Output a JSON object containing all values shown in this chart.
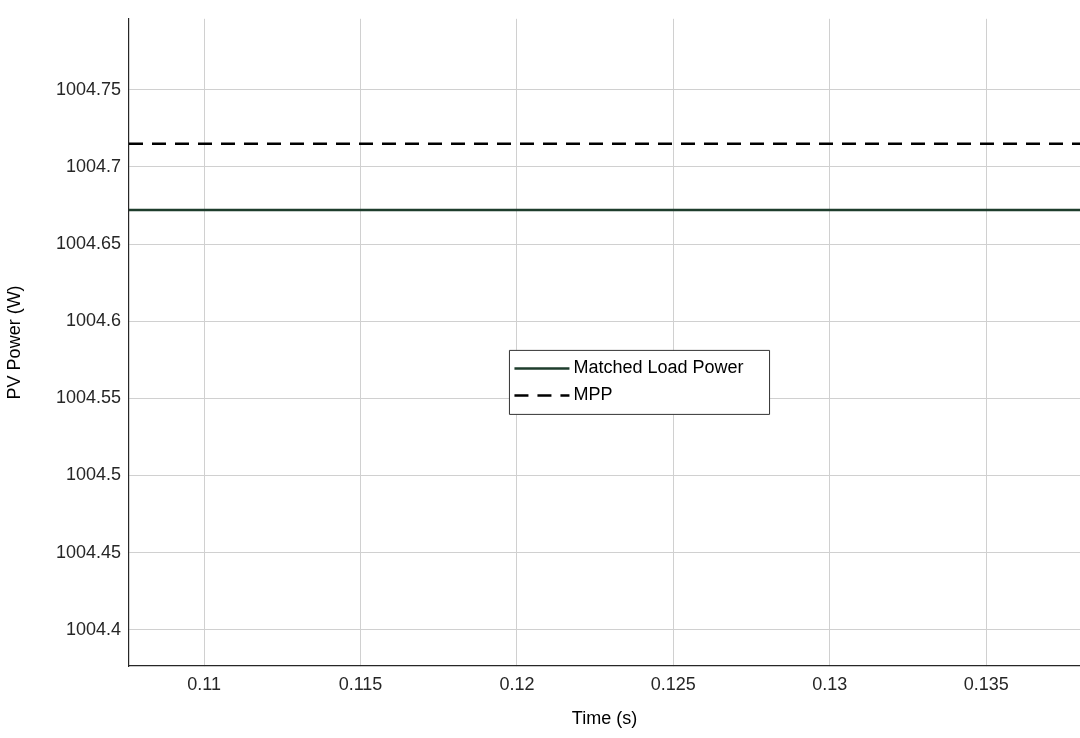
{
  "chart_data": {
    "type": "line",
    "xlabel": "Time (s)",
    "ylabel": "PV Power (W)",
    "x": [
      0.1076,
      0.138
    ],
    "series": [
      {
        "name": "Matched Load Power",
        "color": "#1e3d2c",
        "values": [
          1004.672,
          1004.672
        ],
        "line_style": "solid"
      },
      {
        "name": "MPP",
        "color": "#000000",
        "values": [
          1004.715,
          1004.715
        ],
        "line_style": "dashed"
      }
    ],
    "xlim": [
      0.1076,
      0.138
    ],
    "xticks": [
      0.11,
      0.115,
      0.12,
      0.125,
      0.13,
      0.135
    ],
    "ylim": [
      1004.3765,
      1004.796
    ],
    "yticks": [
      1004.4,
      1004.45,
      1004.5,
      1004.55,
      1004.6,
      1004.65,
      1004.7,
      1004.75
    ],
    "grid": true,
    "legend": "center",
    "marker": "none"
  }
}
